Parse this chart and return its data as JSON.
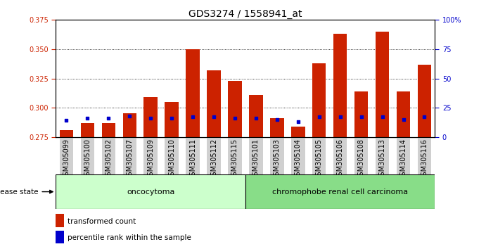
{
  "title": "GDS3274 / 1558941_at",
  "samples": [
    "GSM305099",
    "GSM305100",
    "GSM305102",
    "GSM305107",
    "GSM305109",
    "GSM305110",
    "GSM305111",
    "GSM305112",
    "GSM305115",
    "GSM305101",
    "GSM305103",
    "GSM305104",
    "GSM305105",
    "GSM305106",
    "GSM305108",
    "GSM305113",
    "GSM305114",
    "GSM305116"
  ],
  "transformed_count": [
    0.281,
    0.287,
    0.287,
    0.295,
    0.309,
    0.305,
    0.35,
    0.332,
    0.323,
    0.311,
    0.291,
    0.284,
    0.338,
    0.363,
    0.314,
    0.365,
    0.314,
    0.337
  ],
  "percentile_rank_pct": [
    14,
    16,
    16,
    18,
    16,
    16,
    17,
    17,
    16,
    16,
    15,
    13,
    17,
    17,
    17,
    17,
    15,
    17
  ],
  "y_min": 0.275,
  "y_max": 0.375,
  "y_ticks_left": [
    0.275,
    0.3,
    0.325,
    0.35,
    0.375
  ],
  "y_ticks_right_vals": [
    0,
    25,
    50,
    75,
    100
  ],
  "y_ticks_right_labels": [
    "0",
    "25",
    "50",
    "75",
    "100%"
  ],
  "bar_color": "#cc2200",
  "dot_color": "#0000cc",
  "group1_label": "oncocytoma",
  "group2_label": "chromophobe renal cell carcinoma",
  "group1_count": 9,
  "group2_count": 9,
  "group1_bg": "#ccffcc",
  "group2_bg": "#88dd88",
  "disease_state_label": "disease state",
  "legend_red": "transformed count",
  "legend_blue": "percentile rank within the sample",
  "left_axis_color": "#cc2200",
  "right_axis_color": "#0000cc",
  "bar_width": 0.65,
  "title_fontsize": 10,
  "tick_fontsize": 7,
  "label_fontsize": 7.5,
  "group_fontsize": 8,
  "xtick_bg": "#d0d0d0"
}
